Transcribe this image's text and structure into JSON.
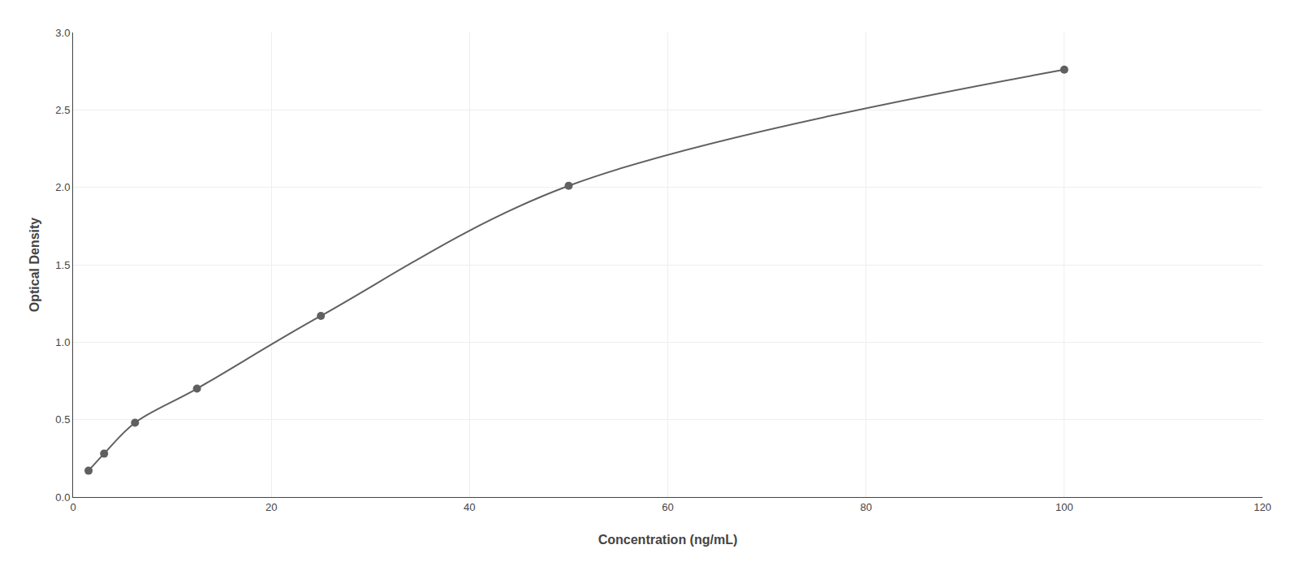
{
  "chart_data": {
    "type": "line",
    "x": [
      1.56,
      3.13,
      6.25,
      12.5,
      25,
      50,
      100
    ],
    "values": [
      0.17,
      0.28,
      0.48,
      0.7,
      1.17,
      2.01,
      2.76
    ],
    "color": "#606060",
    "marker": "circle",
    "line_style": "solid",
    "x_label": "Concentration (ng/mL)",
    "y_label": "Optical Density",
    "xlim": [
      0,
      120
    ],
    "ylim": [
      0,
      3
    ],
    "xticks": [
      0,
      20,
      40,
      60,
      80,
      100,
      120
    ],
    "yticks": [
      {
        "value": 0,
        "label": "0.0"
      },
      0.5,
      {
        "value": 1.0,
        "label": "1.0"
      },
      1.5,
      {
        "value": 2.0,
        "label": "2.0"
      },
      2.5,
      {
        "value": 3.0,
        "label": "3.0"
      }
    ],
    "grid": true
  }
}
